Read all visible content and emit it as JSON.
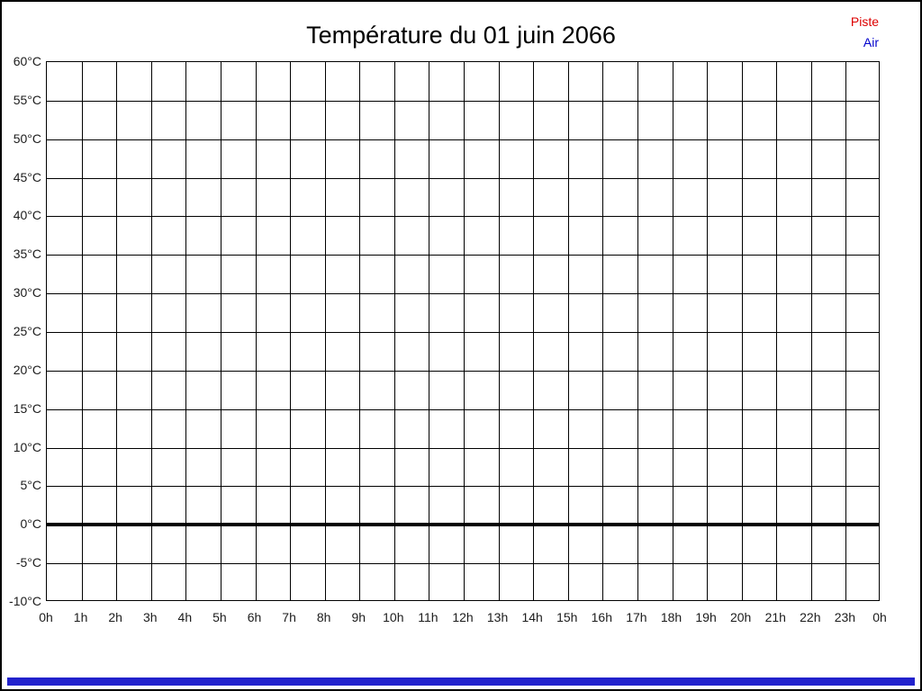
{
  "page": {
    "background": "#ffffff",
    "border_color": "#000000"
  },
  "chart_data": {
    "type": "line",
    "title": "Température du 01 juin 2066",
    "x_ticks": [
      "0h",
      "1h",
      "2h",
      "3h",
      "4h",
      "5h",
      "6h",
      "7h",
      "8h",
      "9h",
      "10h",
      "11h",
      "12h",
      "13h",
      "14h",
      "15h",
      "16h",
      "17h",
      "18h",
      "19h",
      "20h",
      "21h",
      "22h",
      "23h",
      "0h"
    ],
    "x_intervals": 24,
    "y_ticks": [
      "60°C",
      "55°C",
      "50°C",
      "45°C",
      "40°C",
      "35°C",
      "30°C",
      "25°C",
      "20°C",
      "15°C",
      "10°C",
      "5°C",
      "0°C",
      "-5°C",
      "-10°C"
    ],
    "y_min": -10,
    "y_max": 60,
    "y_step": 5,
    "grid": true,
    "grid_color": "#000000",
    "zero_line": {
      "value": 0,
      "color": "#000000",
      "thickness": 4
    },
    "legend_position": "top-right",
    "series": [
      {
        "name": "Piste",
        "color": "#dd0000",
        "values": []
      },
      {
        "name": "Air",
        "color": "#0000cc",
        "values": []
      }
    ]
  },
  "legend": {
    "items": [
      {
        "label": "Piste",
        "color": "#dd0000"
      },
      {
        "label": "Air",
        "color": "#0000cc"
      }
    ]
  },
  "footer": {
    "bar_color": "#2222cc"
  }
}
